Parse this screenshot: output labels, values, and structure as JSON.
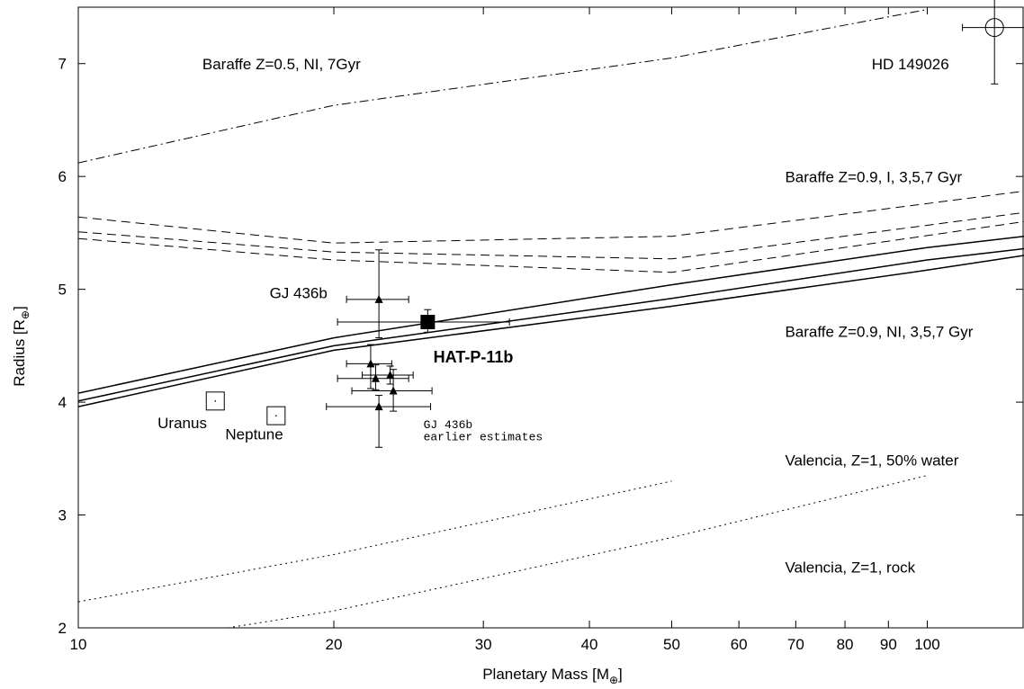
{
  "chart_data": {
    "type": "scatter",
    "x_scale": "log",
    "xlabel_main": "Planetary Mass [M",
    "xlabel_sub": "⊕",
    "xlabel_end": "]",
    "ylabel_main": "Radius [R",
    "ylabel_sub": "⊕",
    "ylabel_end": "]",
    "xlim": [
      10,
      130
    ],
    "ylim": [
      2,
      7.5
    ],
    "x_ticks": [
      {
        "value": 10,
        "label": "10"
      },
      {
        "value": 20,
        "label": "20"
      },
      {
        "value": 30,
        "label": "30"
      },
      {
        "value": 40,
        "label": "40"
      },
      {
        "value": 50,
        "label": "50"
      },
      {
        "value": 60,
        "label": "60"
      },
      {
        "value": 70,
        "label": "70"
      },
      {
        "value": 80,
        "label": "80"
      },
      {
        "value": 90,
        "label": "90"
      },
      {
        "value": 100,
        "label": "100"
      }
    ],
    "y_ticks": [
      {
        "value": 2,
        "label": "2"
      },
      {
        "value": 3,
        "label": "3"
      },
      {
        "value": 4,
        "label": "4"
      },
      {
        "value": 5,
        "label": "5"
      },
      {
        "value": 6,
        "label": "6"
      },
      {
        "value": 7,
        "label": "7"
      }
    ],
    "curves": [
      {
        "style": "dashdot",
        "points": [
          [
            10,
            6.12
          ],
          [
            20,
            6.63
          ],
          [
            50,
            7.05
          ],
          [
            100,
            7.48
          ]
        ]
      },
      {
        "style": "dashed",
        "points": [
          [
            10,
            5.64
          ],
          [
            20,
            5.41
          ],
          [
            50,
            5.47
          ],
          [
            130,
            5.87
          ]
        ]
      },
      {
        "style": "dashed",
        "points": [
          [
            10,
            5.51
          ],
          [
            20,
            5.33
          ],
          [
            50,
            5.27
          ],
          [
            130,
            5.68
          ]
        ]
      },
      {
        "style": "dashed",
        "points": [
          [
            10,
            5.45
          ],
          [
            20,
            5.26
          ],
          [
            50,
            5.15
          ],
          [
            130,
            5.6
          ]
        ]
      },
      {
        "style": "solid",
        "points": [
          [
            10,
            4.08
          ],
          [
            20,
            4.57
          ],
          [
            50,
            5.04
          ],
          [
            100,
            5.37
          ],
          [
            130,
            5.47
          ]
        ]
      },
      {
        "style": "solid",
        "points": [
          [
            10,
            4.01
          ],
          [
            20,
            4.5
          ],
          [
            50,
            4.92
          ],
          [
            100,
            5.26
          ],
          [
            130,
            5.36
          ]
        ]
      },
      {
        "style": "solid",
        "points": [
          [
            10,
            3.96
          ],
          [
            20,
            4.46
          ],
          [
            50,
            4.85
          ],
          [
            100,
            5.17
          ],
          [
            130,
            5.3
          ]
        ]
      },
      {
        "style": "dotted",
        "points": [
          [
            10,
            2.23
          ],
          [
            20,
            2.65
          ],
          [
            50,
            3.3
          ]
        ]
      },
      {
        "style": "dotted",
        "points": [
          [
            15,
            2.0
          ],
          [
            20,
            2.15
          ],
          [
            50,
            2.8
          ],
          [
            100,
            3.35
          ]
        ]
      }
    ],
    "points": [
      {
        "name": "HAT-P-11b",
        "marker": "filled-square",
        "x": 25.8,
        "y": 4.71,
        "xerr": [
          5.6,
          6.4
        ],
        "yerr": [
          0.09,
          0.11
        ]
      },
      {
        "name": "GJ 436b",
        "marker": "triangle",
        "x": 22.6,
        "y": 4.91,
        "xerr": [
          1.9,
          1.9
        ],
        "yerr": [
          0.34,
          0.44
        ]
      },
      {
        "name": "GJ 436b earlier estimates",
        "marker": "triangle",
        "x": 22.1,
        "y": 4.34,
        "xerr": [
          1.4,
          1.3
        ],
        "yerr": [
          0.22,
          0.17
        ]
      },
      {
        "name": "GJ 436b earlier estimates",
        "marker": "triangle",
        "x": 22.4,
        "y": 4.21,
        "xerr": [
          2.2,
          2.1
        ],
        "yerr": [
          0.1,
          0.12
        ]
      },
      {
        "name": "GJ 436b earlier estimates",
        "marker": "triangle",
        "x": 23.3,
        "y": 4.24,
        "xerr": [
          1.7,
          1.5
        ],
        "yerr": [
          0.08,
          0.08
        ]
      },
      {
        "name": "GJ 436b earlier estimates",
        "marker": "triangle",
        "x": 23.5,
        "y": 4.1,
        "xerr": [
          2.5,
          2.6
        ],
        "yerr": [
          0.18,
          0.19
        ]
      },
      {
        "name": "GJ 436b earlier estimates",
        "marker": "triangle",
        "x": 22.6,
        "y": 3.96,
        "xerr": [
          3.0,
          3.4
        ],
        "yerr": [
          0.36,
          0.1
        ]
      },
      {
        "name": "Uranus",
        "marker": "open-square",
        "x": 14.5,
        "y": 4.01
      },
      {
        "name": "Neptune",
        "marker": "open-square",
        "x": 17.1,
        "y": 3.88
      },
      {
        "name": "HD 149026",
        "marker": "open-circle",
        "x": 120,
        "y": 7.32,
        "xerr": [
          10,
          14
        ],
        "yerr": [
          0.5,
          0.3
        ]
      }
    ],
    "annotations": [
      {
        "text": "Baraffe Z=0.5, NI, 7Gyr",
        "style": "normal",
        "x": 14,
        "y": 6.95,
        "anchor": "start"
      },
      {
        "text": "HD 149026",
        "style": "normal",
        "x": 86,
        "y": 6.95,
        "anchor": "start"
      },
      {
        "text": "Baraffe Z=0.9, I, 3,5,7 Gyr",
        "style": "normal",
        "x": 68,
        "y": 5.95,
        "anchor": "start"
      },
      {
        "text": "GJ 436b",
        "style": "normal",
        "x": 16.8,
        "y": 4.92,
        "anchor": "start"
      },
      {
        "text": "Baraffe Z=0.9, NI, 3,5,7 Gyr",
        "style": "normal",
        "x": 68,
        "y": 4.58,
        "anchor": "start"
      },
      {
        "text": "HAT-P-11b",
        "style": "bold",
        "x": 26.2,
        "y": 4.35,
        "anchor": "start"
      },
      {
        "text": "Uranus",
        "style": "normal",
        "x": 12.4,
        "y": 3.77,
        "anchor": "start"
      },
      {
        "text": "Neptune",
        "style": "normal",
        "x": 14.9,
        "y": 3.67,
        "anchor": "start"
      },
      {
        "text": "GJ 436b",
        "style": "mono",
        "x": 25.5,
        "y": 3.77,
        "anchor": "start"
      },
      {
        "text": "earlier estimates",
        "style": "mono",
        "x": 25.5,
        "y": 3.66,
        "anchor": "start"
      },
      {
        "text": "Valencia, Z=1, 50% water",
        "style": "normal",
        "x": 68,
        "y": 3.44,
        "anchor": "start"
      },
      {
        "text": "Valencia, Z=1, rock",
        "style": "normal",
        "x": 68,
        "y": 2.49,
        "anchor": "start"
      }
    ]
  }
}
